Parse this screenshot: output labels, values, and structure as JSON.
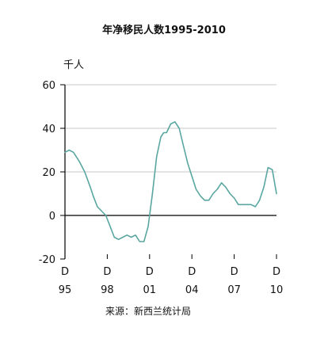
{
  "chart_data": {
    "type": "line",
    "title": "年净移民人数1995-2010",
    "unit": "千人",
    "source": "来源：新西兰统计局",
    "xlim": [
      1995,
      2010
    ],
    "ylim": [
      -20,
      60
    ],
    "yticks": [
      60,
      40,
      20,
      0,
      -20
    ],
    "xticks": [
      {
        "x": 1995,
        "top": "D",
        "bottom": "95"
      },
      {
        "x": 1998,
        "top": "D",
        "bottom": "98"
      },
      {
        "x": 2001,
        "top": "D",
        "bottom": "01"
      },
      {
        "x": 2004,
        "top": "D",
        "bottom": "04"
      },
      {
        "x": 2007,
        "top": "D",
        "bottom": "07"
      },
      {
        "x": 2010,
        "top": "D",
        "bottom": "10"
      }
    ],
    "grid": true,
    "zero_line": true,
    "colors": {
      "line": "#5aa6a0",
      "grid": "#c8c8c8",
      "axis": "#000000"
    },
    "series": [
      {
        "x": [
          1995,
          1995.3,
          1995.6,
          1996,
          1996.4,
          1996.8,
          1997,
          1997.3,
          1997.6,
          1997.9,
          1998.2,
          1998.5,
          1998.8,
          1999.1,
          1999.4,
          1999.7,
          2000,
          2000.3,
          2000.6,
          2000.9,
          2001.2,
          2001.5,
          2001.8,
          2002,
          2002.2,
          2002.5,
          2002.8,
          2003.1,
          2003.4,
          2003.7,
          2004,
          2004.3,
          2004.6,
          2004.9,
          2005.2,
          2005.5,
          2005.8,
          2006.1,
          2006.4,
          2006.7,
          2007,
          2007.3,
          2007.6,
          2007.9,
          2008.2,
          2008.5,
          2008.8,
          2009.1,
          2009.4,
          2009.7,
          2010
        ],
        "y": [
          29,
          30,
          29,
          25,
          20,
          13,
          9,
          4,
          2,
          0,
          -5,
          -10,
          -11,
          -10,
          -9,
          -10,
          -9,
          -12,
          -12,
          -5,
          10,
          27,
          36,
          38,
          38,
          42,
          43,
          40,
          32,
          24,
          18,
          12,
          9,
          7,
          7,
          10,
          12,
          15,
          13,
          10,
          8,
          5,
          5,
          5,
          5,
          4,
          7,
          13,
          22,
          21,
          10
        ]
      }
    ]
  }
}
